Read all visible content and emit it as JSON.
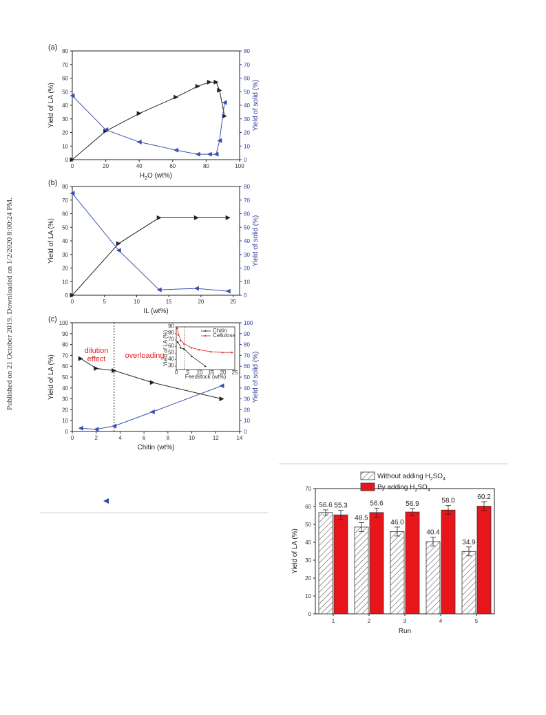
{
  "side_note": "Published on 21 October 2019. Downloaded on 1/2/2020 8:00:24 PM.",
  "chart_data": [
    {
      "type": "line",
      "panel": "(a)",
      "xlabel": "H₂O (wt%)",
      "ylabel": "Yield of LA (%)",
      "y2label": "Yield of solid (%)",
      "xlim": [
        0,
        100
      ],
      "ylim": [
        0,
        80
      ],
      "y2lim": [
        0,
        80
      ],
      "xticks": [
        0,
        20,
        40,
        60,
        80,
        100
      ],
      "yticks": [
        0,
        10,
        20,
        30,
        40,
        50,
        60,
        70,
        80
      ],
      "series": [
        {
          "axis": "left",
          "color": "#222222",
          "marker": "right-triangle",
          "points": [
            [
              0,
              0
            ],
            [
              20,
              21
            ],
            [
              40,
              34
            ],
            [
              62,
              46
            ],
            [
              75,
              54
            ],
            [
              82,
              57
            ],
            [
              86,
              57
            ],
            [
              88,
              51
            ],
            [
              91,
              32
            ]
          ]
        },
        {
          "axis": "right",
          "color": "#3a4fb0",
          "marker": "left-triangle",
          "points": [
            [
              0,
              47
            ],
            [
              20,
              22
            ],
            [
              40,
              13
            ],
            [
              62,
              7
            ],
            [
              75,
              4
            ],
            [
              82,
              4
            ],
            [
              86,
              4
            ],
            [
              88,
              14
            ],
            [
              91,
              42
            ]
          ]
        }
      ]
    },
    {
      "type": "line",
      "panel": "(b)",
      "xlabel": "IL (wt%)",
      "ylabel": "Yield of LA (%)",
      "y2label": "Yield of solid (%)",
      "xlim": [
        0,
        26
      ],
      "ylim": [
        0,
        80
      ],
      "y2lim": [
        0,
        80
      ],
      "xticks": [
        0,
        5,
        10,
        15,
        20,
        25
      ],
      "yticks": [
        0,
        10,
        20,
        30,
        40,
        50,
        60,
        70,
        80
      ],
      "series": [
        {
          "axis": "left",
          "color": "#222222",
          "marker": "right-triangle",
          "points": [
            [
              0,
              0
            ],
            [
              7.2,
              38
            ],
            [
              13.5,
              57
            ],
            [
              19.3,
              57
            ],
            [
              24.2,
              57
            ]
          ]
        },
        {
          "axis": "right",
          "color": "#3a4fb0",
          "marker": "left-triangle",
          "points": [
            [
              0,
              75
            ],
            [
              7.2,
              33
            ],
            [
              13.5,
              4
            ],
            [
              19.3,
              5
            ],
            [
              24.2,
              3
            ]
          ]
        }
      ]
    },
    {
      "type": "line",
      "panel": "(c)",
      "xlabel": "Chitin (wt%)",
      "ylabel": "Yield of LA (%)",
      "y2label": "Yield of solid (%)",
      "xlim": [
        0,
        14
      ],
      "ylim": [
        0,
        100
      ],
      "y2lim": [
        0,
        100
      ],
      "xticks": [
        0,
        2,
        4,
        6,
        8,
        10,
        12,
        14
      ],
      "yticks": [
        0,
        10,
        20,
        30,
        40,
        50,
        60,
        70,
        80,
        90,
        100
      ],
      "divider_x": 3.5,
      "annotations": [
        "dilution effect",
        "overloading"
      ],
      "series": [
        {
          "axis": "left",
          "color": "#222222",
          "marker": "right-triangle",
          "points": [
            [
              0.7,
              67
            ],
            [
              2,
              58
            ],
            [
              3.5,
              56
            ],
            [
              6.7,
              45
            ],
            [
              12.5,
              30
            ]
          ]
        },
        {
          "axis": "right",
          "color": "#3a4fb0",
          "marker": "left-triangle",
          "points": [
            [
              0.7,
              3
            ],
            [
              2,
              2
            ],
            [
              3.5,
              5
            ],
            [
              6.7,
              18
            ],
            [
              12.5,
              42
            ]
          ]
        }
      ],
      "inset": {
        "xlabel": "Feedstock (wt%)",
        "ylabel": "Yield of LA (%)",
        "xlim": [
          0,
          25
        ],
        "ylim": [
          25,
          90
        ],
        "xticks": [
          0,
          5,
          10,
          15,
          20,
          25
        ],
        "yticks": [
          30,
          40,
          50,
          60,
          70,
          80,
          90
        ],
        "divider_x": 3.5,
        "series": [
          {
            "name": "Chitin",
            "color": "#222222",
            "points": [
              [
                0.7,
                67
              ],
              [
                2,
                58
              ],
              [
                3.5,
                56
              ],
              [
                6.7,
                45
              ],
              [
                12.5,
                30
              ]
            ]
          },
          {
            "name": "Cellulose",
            "color": "#e02020",
            "points": [
              [
                0.5,
                88
              ],
              [
                1,
                78
              ],
              [
                2,
                69
              ],
              [
                3.5,
                64
              ],
              [
                6.7,
                58
              ],
              [
                10,
                55
              ],
              [
                15,
                52
              ],
              [
                20,
                51
              ],
              [
                24,
                51
              ]
            ]
          }
        ]
      }
    },
    {
      "type": "bar",
      "xlabel": "Run",
      "ylabel": "Yield of LA (%)",
      "ylim": [
        0,
        70
      ],
      "yticks": [
        0,
        10,
        20,
        30,
        40,
        50,
        60,
        70
      ],
      "categories": [
        "1",
        "2",
        "3",
        "4",
        "5"
      ],
      "series": [
        {
          "name": "Without adding H₂SO₄",
          "pattern": "hatched",
          "values": [
            56.6,
            48.5,
            46.0,
            40.4,
            34.9
          ],
          "labels": [
            "56.6",
            "48.5",
            "46.0",
            "40.4",
            "34.9"
          ],
          "errors": [
            1.5,
            2.5,
            2.5,
            2.5,
            2.5
          ]
        },
        {
          "name": "By adding H₂SO₄",
          "color": "#e8161a",
          "values": [
            55.3,
            56.6,
            56.9,
            58.0,
            60.2
          ],
          "labels": [
            "55.3",
            "56.6",
            "56.9",
            "58.0",
            "60.2"
          ],
          "errors": [
            2.5,
            2.5,
            2.0,
            2.5,
            2.5
          ]
        }
      ]
    }
  ]
}
